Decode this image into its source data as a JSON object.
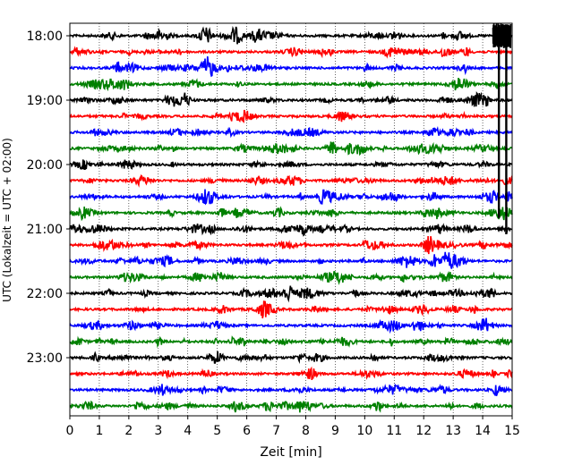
{
  "chart_data": {
    "type": "line",
    "title": "",
    "xlabel": "Zeit  [min]",
    "ylabel": "UTC (Lokalzeit = UTC + 02:00)",
    "xlim": [
      0,
      15
    ],
    "xticks": [
      0,
      1,
      2,
      3,
      4,
      5,
      6,
      7,
      8,
      9,
      10,
      11,
      12,
      13,
      14,
      15
    ],
    "ytick_labels": [
      "18:00",
      "19:00",
      "20:00",
      "21:00",
      "22:00",
      "23:00"
    ],
    "grid": "vertical dotted",
    "row_interval_minutes": 15,
    "color_cycle": [
      "#000000",
      "#ff0000",
      "#0000ff",
      "#008000"
    ],
    "rows": [
      {
        "start": "18:00",
        "color": "#000000"
      },
      {
        "start": "18:15",
        "color": "#ff0000"
      },
      {
        "start": "18:30",
        "color": "#0000ff"
      },
      {
        "start": "18:45",
        "color": "#008000"
      },
      {
        "start": "19:00",
        "color": "#000000"
      },
      {
        "start": "19:15",
        "color": "#ff0000"
      },
      {
        "start": "19:30",
        "color": "#0000ff"
      },
      {
        "start": "19:45",
        "color": "#008000"
      },
      {
        "start": "20:00",
        "color": "#000000"
      },
      {
        "start": "20:15",
        "color": "#ff0000"
      },
      {
        "start": "20:30",
        "color": "#0000ff"
      },
      {
        "start": "20:45",
        "color": "#008000"
      },
      {
        "start": "21:00",
        "color": "#000000"
      },
      {
        "start": "21:15",
        "color": "#ff0000"
      },
      {
        "start": "21:30",
        "color": "#0000ff"
      },
      {
        "start": "21:45",
        "color": "#008000"
      },
      {
        "start": "22:00",
        "color": "#000000"
      },
      {
        "start": "22:15",
        "color": "#ff0000"
      },
      {
        "start": "22:30",
        "color": "#0000ff"
      },
      {
        "start": "22:45",
        "color": "#008000"
      },
      {
        "start": "23:00",
        "color": "#000000"
      },
      {
        "start": "23:15",
        "color": "#ff0000"
      },
      {
        "start": "23:30",
        "color": "#0000ff"
      },
      {
        "start": "23:45",
        "color": "#008000"
      }
    ],
    "event_bursts": [
      {
        "row_start": "18:00",
        "x_min": 14.35,
        "x_max": 14.95
      }
    ],
    "event_tails": [
      {
        "x_min": 14.55,
        "from": "18:00",
        "to": "20:45"
      },
      {
        "x_min": 14.8,
        "from": "18:00",
        "to": "21:00"
      }
    ]
  }
}
